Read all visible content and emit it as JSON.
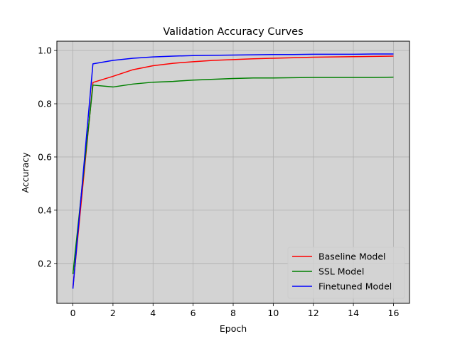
{
  "chart_data": {
    "type": "line",
    "title": "Validation Accuracy Curves",
    "xlabel": "Epoch",
    "ylabel": "Accuracy",
    "xlim": [
      -0.8,
      16.8
    ],
    "ylim": [
      0.05,
      1.035
    ],
    "xticks": [
      0,
      2,
      4,
      6,
      8,
      10,
      12,
      14,
      16
    ],
    "yticks": [
      0.2,
      0.4,
      0.6,
      0.8,
      1.0
    ],
    "ytick_labels": [
      "0.2",
      "0.4",
      "0.6",
      "0.8",
      "1.0"
    ],
    "grid": true,
    "background_color": "#d3d3d3",
    "legend_position": "lower-right",
    "x": [
      0,
      1,
      2,
      3,
      4,
      5,
      6,
      7,
      8,
      9,
      10,
      11,
      12,
      13,
      14,
      15,
      16
    ],
    "series": [
      {
        "name": "Baseline Model",
        "color": "#ff0000",
        "values": [
          0.11,
          0.88,
          0.903,
          0.928,
          0.943,
          0.952,
          0.958,
          0.963,
          0.966,
          0.969,
          0.971,
          0.973,
          0.975,
          0.976,
          0.977,
          0.978,
          0.979
        ]
      },
      {
        "name": "SSL Model",
        "color": "#008000",
        "values": [
          0.16,
          0.87,
          0.863,
          0.874,
          0.881,
          0.884,
          0.889,
          0.892,
          0.895,
          0.897,
          0.897,
          0.898,
          0.899,
          0.899,
          0.899,
          0.899,
          0.9
        ]
      },
      {
        "name": "Finetuned Model",
        "color": "#0000ff",
        "values": [
          0.105,
          0.95,
          0.963,
          0.971,
          0.976,
          0.979,
          0.981,
          0.982,
          0.983,
          0.984,
          0.985,
          0.985,
          0.986,
          0.986,
          0.986,
          0.987,
          0.987
        ]
      }
    ]
  }
}
